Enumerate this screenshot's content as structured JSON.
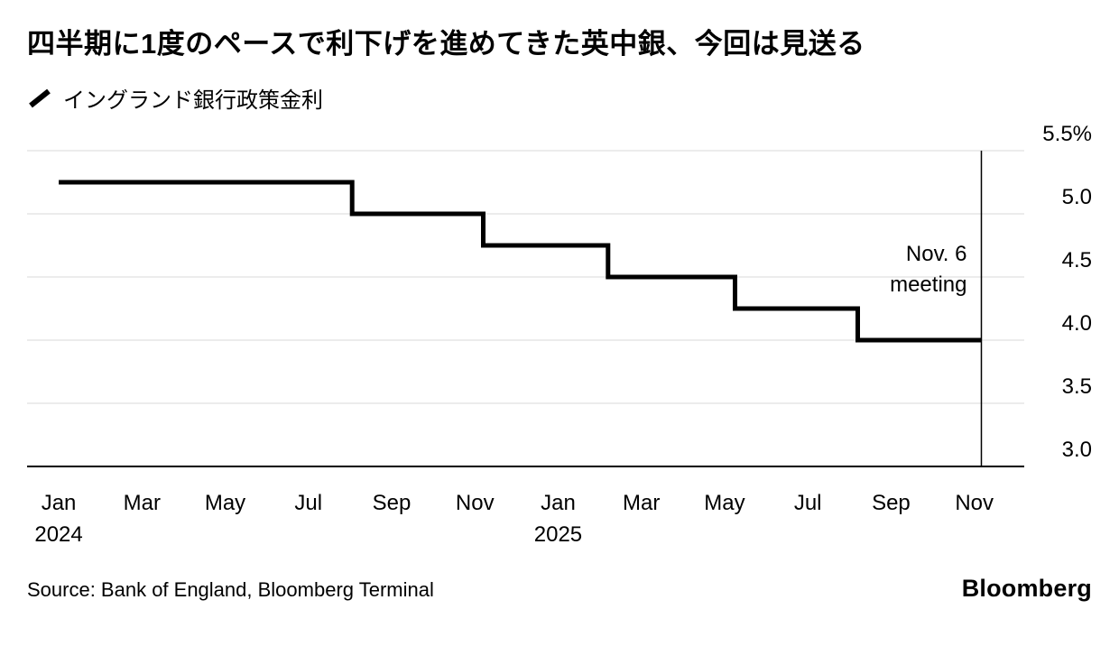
{
  "title": "四半期に1度のペースで利下げを進めてきた英中銀、今回は見送る",
  "legend": {
    "label": "イングランド銀行政策金利"
  },
  "source": "Source: Bank of England, Bloomberg Terminal",
  "logo": "Bloomberg",
  "chart_data": {
    "type": "line",
    "step": true,
    "title": "四半期に1度のペースで利下げを進めてきた英中銀、今回は見送る",
    "xlabel": "",
    "ylabel": "",
    "x_unit": "months since Jan 2024",
    "xlim": [
      -0.76,
      23.2
    ],
    "ylim": [
      3.0,
      5.5
    ],
    "grid": "horizontal",
    "legend_position": "top-left",
    "colors": {
      "line": "#000000",
      "grid": "#d9d9d9",
      "axis": "#000000",
      "text": "#000000"
    },
    "series": [
      {
        "name": "イングランド銀行政策金利",
        "color": "#000000",
        "x": [
          0,
          7.05,
          7.05,
          10.2,
          10.2,
          13.2,
          13.2,
          16.25,
          16.25,
          19.2,
          19.2,
          22.17
        ],
        "y": [
          5.25,
          5.25,
          5.0,
          5.0,
          4.75,
          4.75,
          4.5,
          4.5,
          4.25,
          4.25,
          4.0,
          4.0
        ]
      }
    ],
    "rate_steps": [
      {
        "from": "Jan 2024",
        "rate": 5.25
      },
      {
        "from": "Aug 2024",
        "rate": 5.0
      },
      {
        "from": "Nov 2024",
        "rate": 4.75
      },
      {
        "from": "Feb 2025",
        "rate": 4.5
      },
      {
        "from": "May 2025",
        "rate": 4.25
      },
      {
        "from": "Aug 2025",
        "rate": 4.0
      }
    ],
    "y_ticks": [
      {
        "v": 5.5,
        "label": "5.5%"
      },
      {
        "v": 5.0,
        "label": "5.0"
      },
      {
        "v": 4.5,
        "label": "4.5"
      },
      {
        "v": 4.0,
        "label": "4.0"
      },
      {
        "v": 3.5,
        "label": "3.5"
      },
      {
        "v": 3.0,
        "label": "3.0"
      }
    ],
    "x_ticks": [
      {
        "m": 0,
        "label": "Jan",
        "year": "2024"
      },
      {
        "m": 2,
        "label": "Mar"
      },
      {
        "m": 4,
        "label": "May"
      },
      {
        "m": 6,
        "label": "Jul"
      },
      {
        "m": 8,
        "label": "Sep"
      },
      {
        "m": 10,
        "label": "Nov"
      },
      {
        "m": 12,
        "label": "Jan",
        "year": "2025"
      },
      {
        "m": 14,
        "label": "Mar"
      },
      {
        "m": 16,
        "label": "May"
      },
      {
        "m": 18,
        "label": "Jul"
      },
      {
        "m": 20,
        "label": "Sep"
      },
      {
        "m": 22,
        "label": "Nov"
      }
    ],
    "event_line": {
      "x": 22.17,
      "lines": [
        "Nov. 6",
        "meeting"
      ]
    }
  }
}
